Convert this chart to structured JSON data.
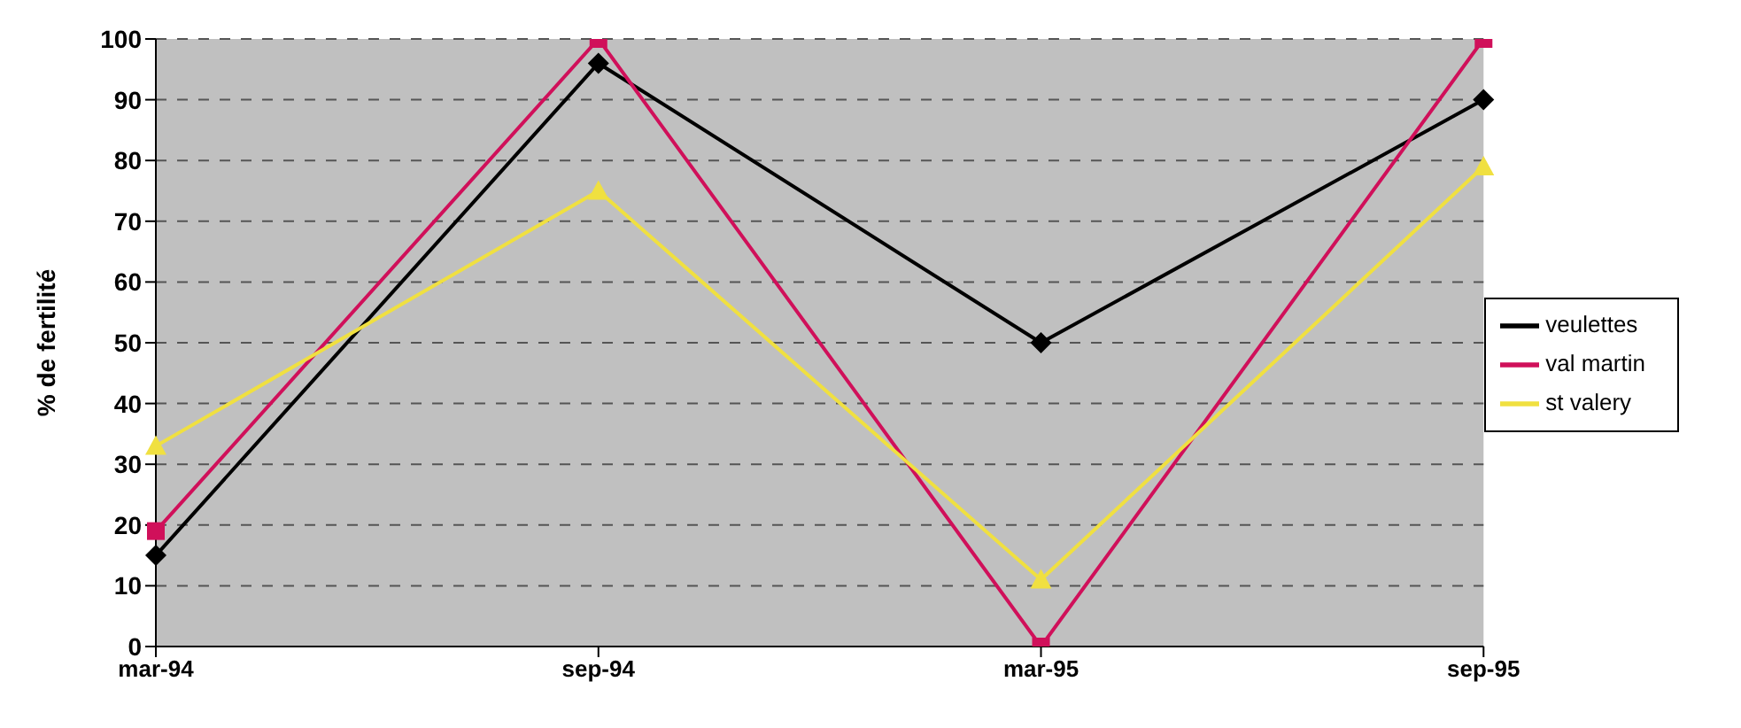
{
  "chart_data": {
    "type": "line",
    "ylabel": "% de fertilité",
    "categories": [
      "mar-94",
      "sep-94",
      "mar-95",
      "sep-95"
    ],
    "series": [
      {
        "name": "veulettes",
        "color": "#000000",
        "marker": "diamond",
        "values": [
          15,
          96,
          50,
          90
        ]
      },
      {
        "name": "val martin",
        "color": "#d0105a",
        "marker": "square",
        "values": [
          19,
          100,
          0,
          100
        ]
      },
      {
        "name": "st valery",
        "color": "#f0e040",
        "marker": "triangle",
        "values": [
          33,
          75,
          11,
          79
        ]
      }
    ],
    "ylim": [
      0,
      100
    ],
    "yticks": [
      0,
      10,
      20,
      30,
      40,
      50,
      60,
      70,
      80,
      90,
      100
    ],
    "grid": "y",
    "legend": "right",
    "line_style": "solid"
  }
}
